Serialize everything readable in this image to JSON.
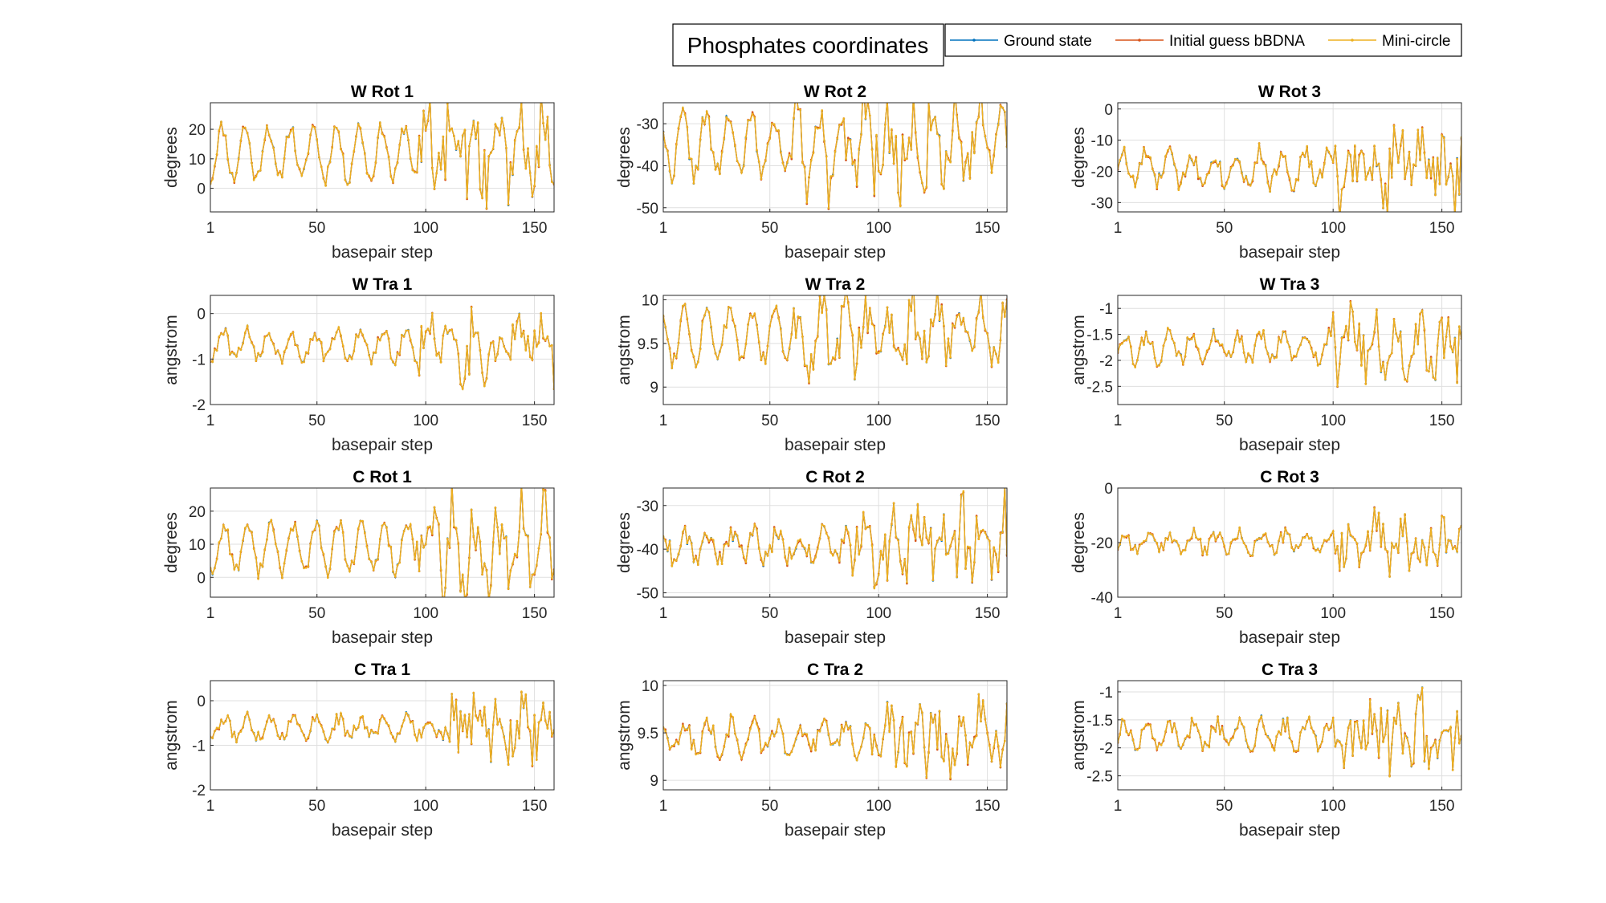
{
  "figure": {
    "suptitle": "Phosphates coordinates",
    "legend": {
      "placement": "top-right",
      "entries": [
        {
          "name": "Ground state",
          "color": "#0072BD"
        },
        {
          "name": "Initial guess bBDNA",
          "color": "#D95319"
        },
        {
          "name": "Mini-circle",
          "color": "#EDB120"
        }
      ]
    },
    "grid": true
  },
  "chart_data": [
    {
      "type": "line",
      "title": "W Rot 1",
      "xlabel": "basepair step",
      "ylabel": "degrees",
      "xlim": [
        1,
        159
      ],
      "ylim": [
        -8,
        29
      ],
      "xticks": [
        1,
        50,
        100,
        150
      ],
      "yticks": [
        0,
        10,
        20
      ],
      "n": 159,
      "seed": 11,
      "baseline": 12,
      "amplitude": 9,
      "period": 10.5,
      "noise": 2.5,
      "spike_ranges": [
        [
          95,
          159
        ]
      ],
      "spike_amp": 13
    },
    {
      "type": "line",
      "title": "W Rot 2",
      "xlabel": "basepair step",
      "ylabel": "degrees",
      "xlim": [
        1,
        159
      ],
      "ylim": [
        -51,
        -25
      ],
      "xticks": [
        1,
        50,
        100,
        150
      ],
      "yticks": [
        -50,
        -40,
        -30
      ],
      "n": 159,
      "seed": 22,
      "baseline": -35,
      "amplitude": 7,
      "period": 10.5,
      "noise": 2.5,
      "spike_ranges": [
        [
          60,
          159
        ]
      ],
      "spike_amp": 8
    },
    {
      "type": "line",
      "title": "W Rot 3",
      "xlabel": "basepair step",
      "ylabel": "degrees",
      "xlim": [
        1,
        159
      ],
      "ylim": [
        -33,
        2
      ],
      "xticks": [
        1,
        50,
        100,
        150
      ],
      "yticks": [
        -30,
        -20,
        -10,
        0
      ],
      "n": 159,
      "seed": 33,
      "baseline": -19,
      "amplitude": 5,
      "period": 10.5,
      "noise": 3,
      "spike_ranges": [
        [
          100,
          159
        ]
      ],
      "spike_amp": 10
    },
    {
      "type": "line",
      "title": "W Tra 1",
      "xlabel": "basepair step",
      "ylabel": "angstrom",
      "xlim": [
        1,
        159
      ],
      "ylim": [
        -2,
        0.4
      ],
      "xticks": [
        1,
        50,
        100,
        150
      ],
      "yticks": [
        -2,
        -1,
        0
      ],
      "n": 159,
      "seed": 44,
      "baseline": -0.7,
      "amplitude": 0.3,
      "period": 10.5,
      "noise": 0.15,
      "spike_ranges": [
        [
          95,
          159
        ]
      ],
      "spike_amp": 0.65
    },
    {
      "type": "line",
      "title": "W Tra 2",
      "xlabel": "basepair step",
      "ylabel": "angstrom",
      "xlim": [
        1,
        159
      ],
      "ylim": [
        8.8,
        10.05
      ],
      "xticks": [
        1,
        50,
        100,
        150
      ],
      "yticks": [
        9,
        9.5,
        10
      ],
      "n": 159,
      "seed": 55,
      "baseline": 9.6,
      "amplitude": 0.3,
      "period": 10.5,
      "noise": 0.1,
      "spike_ranges": [
        [
          60,
          159
        ]
      ],
      "spike_amp": 0.3
    },
    {
      "type": "line",
      "title": "W Tra 3",
      "xlabel": "basepair step",
      "ylabel": "angstrom",
      "xlim": [
        1,
        159
      ],
      "ylim": [
        -2.85,
        -0.75
      ],
      "xticks": [
        1,
        50,
        100,
        150
      ],
      "yticks": [
        -2.5,
        -2,
        -1.5,
        -1
      ],
      "n": 159,
      "seed": 66,
      "baseline": -1.75,
      "amplitude": 0.25,
      "period": 10.5,
      "noise": 0.15,
      "spike_ranges": [
        [
          100,
          159
        ]
      ],
      "spike_amp": 0.55
    },
    {
      "type": "line",
      "title": "C Rot 1",
      "xlabel": "basepair step",
      "ylabel": "degrees",
      "xlim": [
        1,
        159
      ],
      "ylim": [
        -6,
        27
      ],
      "xticks": [
        1,
        50,
        100,
        150
      ],
      "yticks": [
        0,
        10,
        20
      ],
      "n": 159,
      "seed": 77,
      "baseline": 9,
      "amplitude": 7,
      "period": 10.5,
      "noise": 2.5,
      "spike_ranges": [
        [
          95,
          159
        ]
      ],
      "spike_amp": 11
    },
    {
      "type": "line",
      "title": "C Rot 2",
      "xlabel": "basepair step",
      "ylabel": "degrees",
      "xlim": [
        1,
        159
      ],
      "ylim": [
        -51,
        -26
      ],
      "xticks": [
        1,
        50,
        100,
        150
      ],
      "yticks": [
        -50,
        -40,
        -30
      ],
      "n": 159,
      "seed": 88,
      "baseline": -39,
      "amplitude": 3,
      "period": 10.5,
      "noise": 2.5,
      "spike_ranges": [
        [
          80,
          159
        ]
      ],
      "spike_amp": 9
    },
    {
      "type": "line",
      "title": "C Rot 3",
      "xlabel": "basepair step",
      "ylabel": "degrees",
      "xlim": [
        1,
        159
      ],
      "ylim": [
        -40,
        0
      ],
      "xticks": [
        1,
        50,
        100,
        150
      ],
      "yticks": [
        -40,
        -20,
        0
      ],
      "n": 159,
      "seed": 99,
      "baseline": -20,
      "amplitude": 3,
      "period": 10.5,
      "noise": 2.5,
      "spike_ranges": [
        [
          100,
          159
        ]
      ],
      "spike_amp": 9
    },
    {
      "type": "line",
      "title": "C Tra 1",
      "xlabel": "basepair step",
      "ylabel": "angstrom",
      "xlim": [
        1,
        159
      ],
      "ylim": [
        -2,
        0.45
      ],
      "xticks": [
        1,
        50,
        100,
        150
      ],
      "yticks": [
        -2,
        -1,
        0
      ],
      "n": 159,
      "seed": 111,
      "baseline": -0.6,
      "amplitude": 0.2,
      "period": 10.5,
      "noise": 0.15,
      "spike_ranges": [
        [
          110,
          159
        ]
      ],
      "spike_amp": 0.6
    },
    {
      "type": "line",
      "title": "C Tra 2",
      "xlabel": "basepair step",
      "ylabel": "angstrom",
      "xlim": [
        1,
        159
      ],
      "ylim": [
        8.9,
        10.05
      ],
      "xticks": [
        1,
        50,
        100,
        150
      ],
      "yticks": [
        9,
        9.5,
        10
      ],
      "n": 159,
      "seed": 122,
      "baseline": 9.45,
      "amplitude": 0.15,
      "period": 10.5,
      "noise": 0.1,
      "spike_ranges": [
        [
          95,
          159
        ]
      ],
      "spike_amp": 0.35
    },
    {
      "type": "line",
      "title": "C Tra 3",
      "xlabel": "basepair step",
      "ylabel": "angstrom",
      "xlim": [
        1,
        159
      ],
      "ylim": [
        -2.75,
        -0.8
      ],
      "xticks": [
        1,
        50,
        100,
        150
      ],
      "yticks": [
        -2.5,
        -2,
        -1.5,
        -1
      ],
      "n": 159,
      "seed": 133,
      "baseline": -1.75,
      "amplitude": 0.2,
      "period": 10.5,
      "noise": 0.15,
      "spike_ranges": [
        [
          100,
          159
        ]
      ],
      "spike_amp": 0.55
    }
  ]
}
